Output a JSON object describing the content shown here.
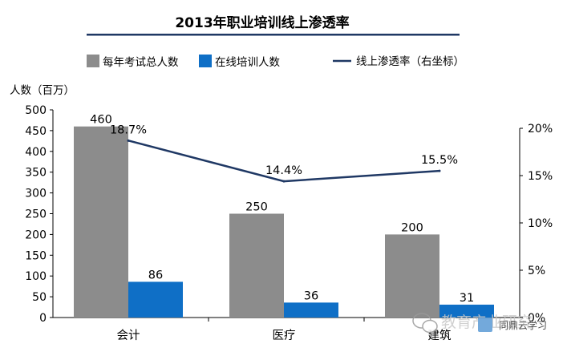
{
  "chart_data": {
    "type": "bar",
    "title": "2013年职业培训线上渗透率",
    "categories": [
      "会计",
      "医疗",
      "建筑"
    ],
    "series": [
      {
        "name": "每年考试总人数",
        "values": [
          460,
          250,
          200
        ],
        "color": "#8c8c8c"
      },
      {
        "name": "在线培训人数",
        "values": [
          86,
          36,
          31
        ],
        "color": "#0f6fc6"
      }
    ],
    "line_series": {
      "name": "线上渗透率（右坐标）",
      "values": [
        18.7,
        14.4,
        15.5
      ],
      "labels": [
        "18.7%",
        "14.4%",
        "15.5%"
      ],
      "color": "#1f3864"
    },
    "ylabel": "人数（百万）",
    "ylim": [
      0,
      500
    ],
    "yticks": [
      "0",
      "50",
      "100",
      "150",
      "200",
      "250",
      "300",
      "350",
      "400",
      "450",
      "500"
    ],
    "y2lim": [
      0,
      20
    ],
    "y2ticks": [
      "0%",
      "5%",
      "10%",
      "15%",
      "20%"
    ],
    "grid": false,
    "legend": "top"
  },
  "watermark": {
    "text": "教育产业研究",
    "subtext": "同鼎云学习"
  }
}
